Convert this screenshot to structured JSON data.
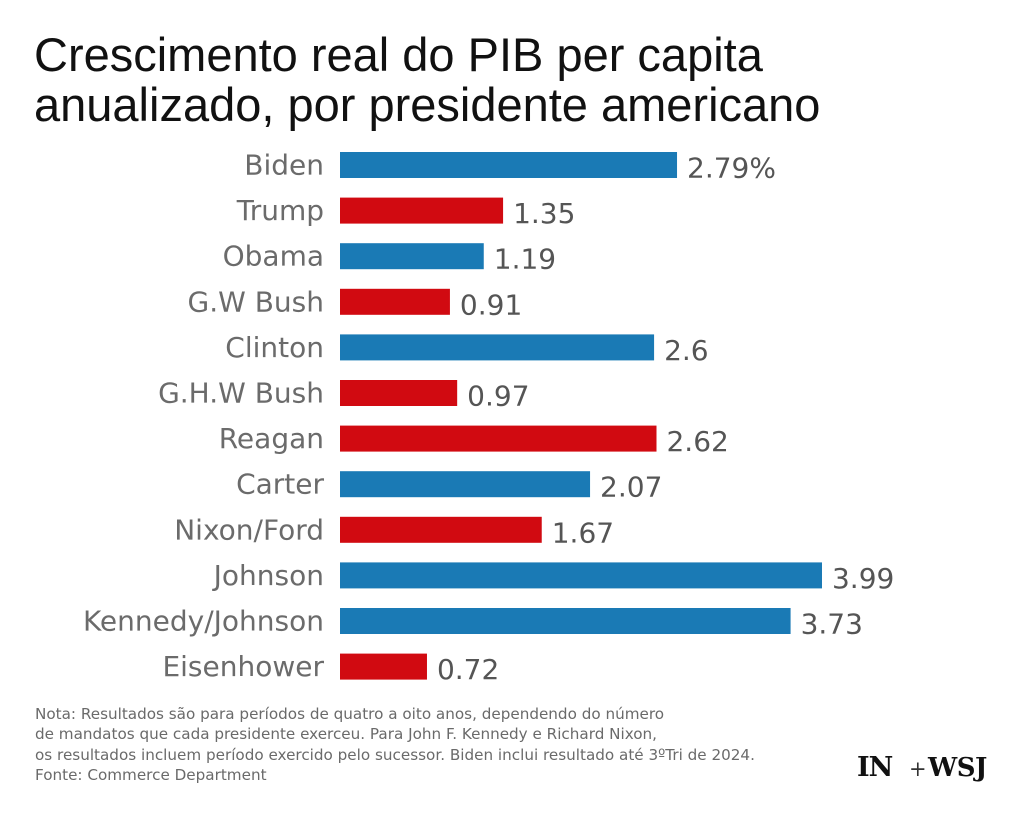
{
  "title": {
    "line1": "Crescimento real do PIB per capita",
    "line2": "anualizado, por presidente americano"
  },
  "colors": {
    "democrat": "#1a7ab5",
    "republican": "#d10a11"
  },
  "chart_data": {
    "type": "bar",
    "orientation": "horizontal",
    "title": "Crescimento real do PIB per capita anualizado, por presidente americano",
    "categories": [
      "Biden",
      "Trump",
      "Obama",
      "G.W Bush",
      "Clinton",
      "G.H.W Bush",
      "Reagan",
      "Carter",
      "Nixon/Ford",
      "Johnson",
      "Kennedy/Johnson",
      "Eisenhower"
    ],
    "values": [
      2.79,
      1.35,
      1.19,
      0.91,
      2.6,
      0.97,
      2.62,
      2.07,
      1.67,
      3.99,
      3.73,
      0.72
    ],
    "value_labels": [
      "2.79%",
      "1.35",
      "1.19",
      "0.91",
      "2.6",
      "0.97",
      "2.62",
      "2.07",
      "1.67",
      "3.99",
      "3.73",
      "0.72"
    ],
    "party": [
      "democrat",
      "republican",
      "democrat",
      "republican",
      "democrat",
      "republican",
      "republican",
      "democrat",
      "republican",
      "democrat",
      "democrat",
      "republican"
    ],
    "xlabel": "",
    "ylabel": "",
    "grid": false,
    "legend": "none"
  },
  "notes": {
    "line1": "Nota: Resultados são para períodos de quatro a oito anos, dependendo do número",
    "line2": "de mandatos que cada presidente exerceu. Para John F. Kennedy e Richard Nixon,",
    "line3": "os resultados incluem período exercido pelo sucessor. Biden inclui resultado até 3ºTri de 2024.",
    "source": "Fonte: Commerce Department"
  },
  "logos": {
    "brand1": "IN",
    "plus": "+",
    "brand2": "WSJ"
  }
}
